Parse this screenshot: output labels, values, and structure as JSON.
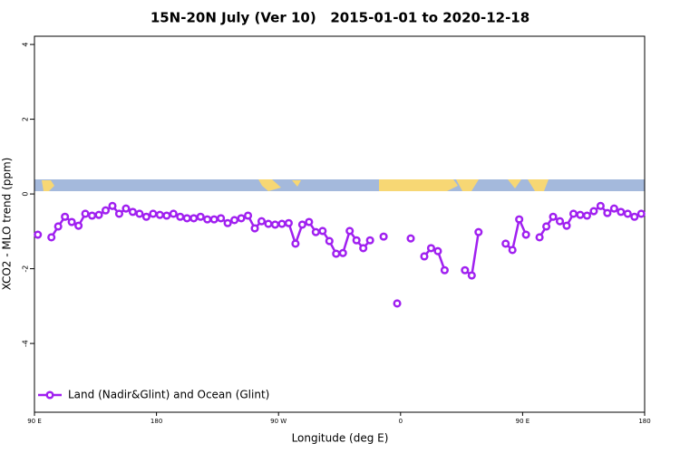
{
  "chart_data": {
    "type": "line",
    "title": "15N-20N July (Ver 10)   2015-01-01 to 2020-12-18",
    "x_label": "Longitude (deg E)",
    "y_label": "XCO2 - MLO trend (ppm)",
    "x": [
      92.5,
      97.5,
      102.5,
      107.5,
      112.5,
      117.5,
      122.5,
      127.5,
      132.5,
      137.5,
      142.5,
      147.5,
      152.5,
      157.5,
      162.5,
      167.5,
      172.5,
      177.5,
      182.5,
      187.5,
      192.5,
      197.5,
      202.5,
      207.5,
      212.5,
      217.5,
      222.5,
      227.5,
      232.5,
      237.5,
      242.5,
      247.5,
      252.5,
      257.5,
      262.5,
      267.5,
      272.5,
      277.5,
      282.5,
      287.5,
      292.5,
      297.5,
      302.5,
      307.5,
      312.5,
      317.5,
      322.5,
      327.5,
      332.5,
      337.5,
      342.5,
      347.5,
      352.5,
      357.5,
      362.5,
      367.5,
      372.5,
      377.5,
      382.5,
      387.5,
      392.5,
      397.5,
      402.5,
      407.5,
      412.5,
      417.5,
      422.5,
      427.5,
      432.5,
      437.5,
      442.5,
      447.5,
      452.5,
      457.5,
      462.5,
      467.5,
      472.5,
      477.5,
      482.5,
      487.5,
      492.5,
      497.5,
      502.5,
      507.5,
      512.5,
      517.5,
      522.5,
      527.5,
      532.5,
      537.5
    ],
    "series": [
      {
        "name": "Land (Nadir&Glint) and Ocean (Glint)",
        "color": "#a020f0",
        "values": [
          -1.09,
          null,
          -1.16,
          -0.87,
          -0.61,
          -0.75,
          -0.85,
          -0.53,
          -0.58,
          -0.56,
          -0.44,
          -0.32,
          -0.53,
          -0.39,
          -0.48,
          -0.53,
          -0.61,
          -0.53,
          -0.56,
          -0.58,
          -0.53,
          -0.61,
          -0.65,
          -0.65,
          -0.61,
          -0.68,
          -0.68,
          -0.65,
          -0.78,
          -0.7,
          -0.65,
          -0.58,
          -0.92,
          -0.73,
          -0.8,
          -0.82,
          -0.8,
          -0.78,
          -1.33,
          -0.82,
          -0.75,
          -1.02,
          -0.99,
          -1.26,
          -1.6,
          -1.58,
          -0.99,
          -1.24,
          -1.45,
          -1.24,
          null,
          -1.14,
          null,
          -2.93,
          null,
          -1.19,
          null,
          -1.67,
          -1.45,
          -1.53,
          -2.04,
          null,
          null,
          -2.04,
          -2.18,
          -1.02,
          null,
          null,
          null,
          -1.33,
          -1.5,
          -0.68,
          -1.09,
          null,
          -1.16,
          -0.87,
          -0.61,
          -0.73,
          -0.85,
          -0.53,
          -0.56,
          -0.58,
          -0.46,
          -0.32,
          -0.51,
          -0.39,
          -0.48,
          -0.53,
          -0.61,
          -0.53
        ]
      }
    ],
    "xlim": [
      90,
      540
    ],
    "xticks": [
      {
        "value": 90,
        "label": "90 E"
      },
      180,
      {
        "value": 270,
        "label": "90 W"
      },
      {
        "value": 360,
        "label": "0"
      },
      {
        "value": 450,
        "label": "90 E"
      },
      {
        "value": 540,
        "label": "180"
      }
    ],
    "ylim": [
      -5.84,
      4.22
    ],
    "yticks": [
      -4,
      -2,
      0,
      2,
      4
    ],
    "legend": "bottomleft"
  }
}
